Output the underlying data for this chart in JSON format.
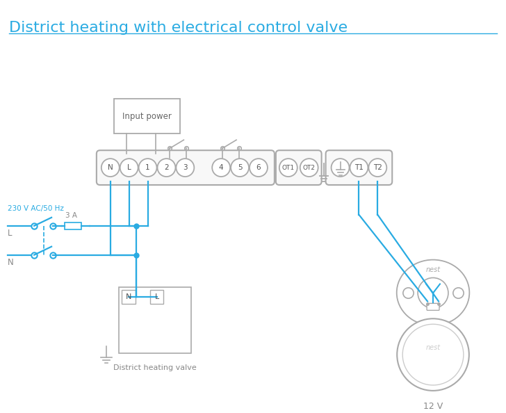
{
  "title": "District heating with electrical control valve",
  "title_color": "#29abe2",
  "title_fontsize": 16,
  "bg_color": "#ffffff",
  "line_color": "#29abe2",
  "gray_color": "#aaaaaa",
  "dark_gray": "#666666",
  "terminal_labels": [
    "N",
    "L",
    "1",
    "2",
    "3",
    "4",
    "5",
    "6"
  ],
  "ot_labels": [
    "OT1",
    "OT2"
  ],
  "input_power_label": "Input power",
  "district_valve_label": "District heating valve",
  "voltage_label": "230 V AC/50 Hz",
  "fuse_label": "3 A",
  "l_label": "L",
  "n_label": "N",
  "twelve_v_label": "12 V",
  "nest_label": "nest"
}
